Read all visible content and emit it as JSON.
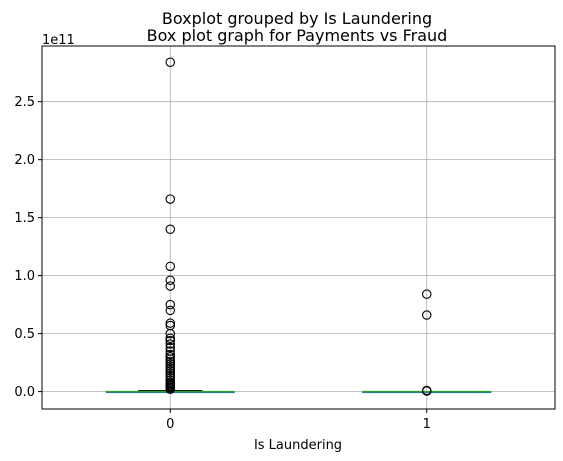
{
  "chart_data": {
    "type": "box",
    "suptitle": "Boxplot grouped by Is Laundering",
    "title": "Box plot graph for Payments vs Fraud",
    "xlabel": "Is Laundering",
    "ylabel": "",
    "y_scale_label": "1e11",
    "categories": [
      "0",
      "1"
    ],
    "ylim": [
      -0.15,
      2.98
    ],
    "yticks": [
      0.0,
      0.5,
      1.0,
      1.5,
      2.0,
      2.5
    ],
    "ytick_labels": [
      "0.0",
      "0.5",
      "1.0",
      "1.5",
      "2.0",
      "2.5"
    ],
    "grid": true,
    "boxes": [
      {
        "category": "0",
        "median": 0.0,
        "q1": 0.0,
        "q3": 0.0,
        "whisker_low": 0.0,
        "whisker_high": 0.01,
        "outliers": [
          2.84,
          1.66,
          1.4,
          1.08,
          0.96,
          0.91,
          0.75,
          0.7,
          0.59,
          0.57,
          0.5,
          0.46,
          0.44,
          0.41,
          0.38,
          0.35,
          0.32,
          0.3,
          0.28,
          0.26,
          0.24,
          0.22,
          0.2,
          0.18,
          0.16,
          0.14,
          0.12,
          0.1,
          0.08,
          0.07,
          0.06,
          0.05,
          0.04,
          0.03,
          0.02
        ]
      },
      {
        "category": "1",
        "median": 0.0,
        "q1": 0.0,
        "q3": 0.0,
        "whisker_low": 0.0,
        "whisker_high": 0.0,
        "outliers": [
          0.84,
          0.66,
          0.01,
          0.005
        ]
      }
    ],
    "colors": {
      "box": "#1f77b4",
      "median": "#2ca02c",
      "grid": "#b0b0b0",
      "frame": "#000000"
    }
  }
}
